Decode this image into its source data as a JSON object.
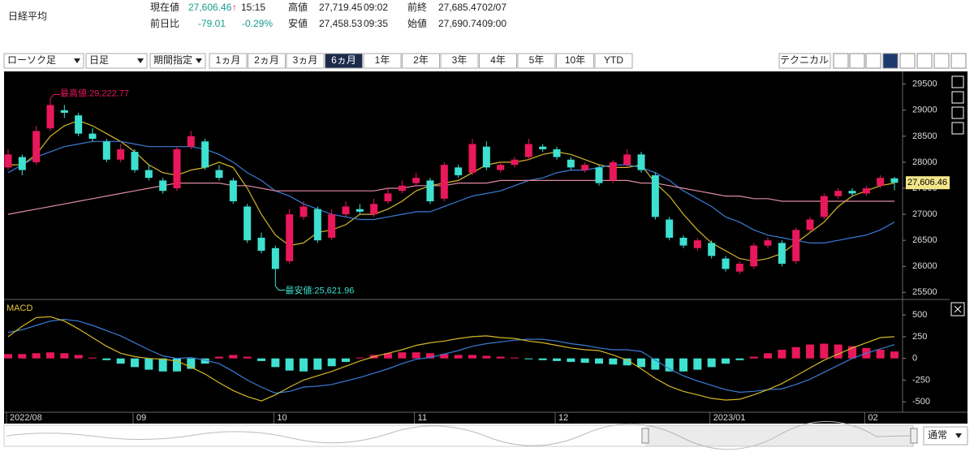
{
  "header": {
    "title": "日経平均",
    "fields": [
      "現在値",
      "27,606.46",
      "↑",
      "15:15",
      "高値",
      "27,719.45",
      "09:02",
      "前終",
      "27,685.47",
      "02/07",
      "前日比",
      "-79.01",
      "-0.29%",
      "安値",
      "27,458.53",
      "09:35",
      "始値",
      "27,690.74",
      "09:00"
    ]
  },
  "toolbar": {
    "dropdowns": [
      "ローソク足",
      "日足",
      "期間指定"
    ],
    "periods": [
      "1ヵ月",
      "2ヵ月",
      "3ヵ月",
      "6ヵ月",
      "1年",
      "2年",
      "3年",
      "4年",
      "5年",
      "10年",
      "YTD"
    ],
    "selected_period": 3,
    "technical": "テクニカル",
    "scale_mode": "通常"
  },
  "chart_data": [
    {
      "type": "candlestick",
      "up_color": "#e8185a",
      "down_color": "#3ee0d0",
      "categories": [
        "2022/08",
        null,
        null,
        null,
        null,
        null,
        null,
        null,
        null,
        "09",
        null,
        null,
        null,
        null,
        null,
        null,
        null,
        null,
        null,
        "10",
        null,
        null,
        null,
        null,
        null,
        null,
        null,
        null,
        null,
        "11",
        null,
        null,
        null,
        null,
        null,
        null,
        null,
        null,
        null,
        "12",
        null,
        null,
        null,
        null,
        null,
        null,
        null,
        null,
        null,
        null,
        "2023/01",
        null,
        null,
        null,
        null,
        null,
        null,
        null,
        null,
        null,
        null,
        "02",
        null,
        null
      ],
      "open": [
        27900,
        28100,
        28000,
        28650,
        29000,
        28900,
        28550,
        28400,
        28050,
        28200,
        27850,
        27650,
        27500,
        28300,
        28400,
        27850,
        27650,
        27150,
        26550,
        26350,
        26100,
        26950,
        27100,
        26550,
        27000,
        27100,
        27000,
        27250,
        27450,
        27600,
        27650,
        27300,
        27900,
        27800,
        28300,
        27850,
        27950,
        28100,
        28300,
        28250,
        28050,
        27850,
        27900,
        27650,
        27950,
        28150,
        27750,
        26900,
        26550,
        26350,
        26450,
        26150,
        25900,
        26000,
        26400,
        26450,
        26100,
        26700,
        26950,
        27350,
        27450,
        27400,
        27550,
        27690.74
      ],
      "high": [
        28250,
        28150,
        28700,
        29222.77,
        29100,
        28950,
        28650,
        28450,
        28350,
        28250,
        27950,
        27700,
        28300,
        28600,
        28450,
        27950,
        27700,
        27200,
        26650,
        26400,
        27100,
        27250,
        27150,
        27100,
        27250,
        27200,
        27300,
        27500,
        27650,
        27800,
        27700,
        28000,
        27950,
        28450,
        28400,
        28000,
        28100,
        28450,
        28350,
        28300,
        28100,
        28000,
        27950,
        28050,
        28250,
        28200,
        27800,
        26950,
        26600,
        26550,
        26500,
        26200,
        26100,
        26450,
        26550,
        26500,
        26750,
        26950,
        27400,
        27500,
        27500,
        27550,
        27750,
        27719.45
      ],
      "low": [
        27850,
        27750,
        27950,
        28600,
        28850,
        28500,
        28400,
        28000,
        28000,
        27800,
        27650,
        27400,
        27450,
        28250,
        27850,
        27650,
        27200,
        26450,
        26250,
        25621.96,
        26050,
        26900,
        26450,
        26500,
        26950,
        27000,
        26950,
        27200,
        27400,
        27550,
        27200,
        27250,
        27700,
        27750,
        27850,
        27800,
        27900,
        28050,
        28200,
        28050,
        27850,
        27800,
        27550,
        27600,
        27900,
        27800,
        26900,
        26500,
        26350,
        26300,
        26150,
        25900,
        25850,
        25950,
        26350,
        26000,
        26050,
        26650,
        26900,
        27300,
        27350,
        27350,
        27500,
        27458.53
      ],
      "close": [
        28150,
        27850,
        28600,
        29100,
        28950,
        28550,
        28450,
        28050,
        28250,
        27850,
        27700,
        27450,
        28250,
        28500,
        27900,
        27700,
        27250,
        26500,
        26300,
        25950,
        27000,
        27150,
        26500,
        27000,
        27150,
        27050,
        27200,
        27400,
        27550,
        27700,
        27250,
        27950,
        27750,
        28350,
        27900,
        27950,
        28050,
        28350,
        28250,
        28100,
        27900,
        27950,
        27600,
        28000,
        28150,
        27850,
        26950,
        26550,
        26400,
        26500,
        26200,
        25950,
        26050,
        26400,
        26500,
        26050,
        26700,
        26900,
        27350,
        27450,
        27400,
        27500,
        27700,
        27606.46
      ],
      "series": [
        {
          "color": "#d4b828",
          "values": [
            27950,
            27950,
            28150,
            28500,
            28700,
            28800,
            28700,
            28550,
            28400,
            28200,
            27950,
            27800,
            27750,
            27850,
            27900,
            28000,
            27900,
            27500,
            27000,
            26600,
            26400,
            26450,
            26650,
            26700,
            26800,
            27000,
            27000,
            27100,
            27250,
            27450,
            27550,
            27600,
            27650,
            27800,
            27950,
            28000,
            28000,
            28050,
            28150,
            28200,
            28150,
            28050,
            27950,
            27900,
            27900,
            27950,
            27600,
            27350,
            27000,
            26700,
            26450,
            26300,
            26150,
            26100,
            26150,
            26250,
            26450,
            26650,
            26850,
            27150,
            27350,
            27450,
            27550,
            27600
          ]
        },
        {
          "color": "#3a7bd5",
          "values": [
            27800,
            27950,
            28100,
            28200,
            28300,
            28350,
            28400,
            28400,
            28400,
            28350,
            28300,
            28300,
            28300,
            28300,
            28250,
            28150,
            28000,
            27800,
            27650,
            27450,
            27350,
            27200,
            27100,
            27000,
            26950,
            26900,
            26900,
            26950,
            27000,
            27050,
            27050,
            27150,
            27250,
            27350,
            27400,
            27450,
            27550,
            27650,
            27700,
            27800,
            27850,
            27850,
            27900,
            27950,
            27950,
            27900,
            27800,
            27650,
            27450,
            27300,
            27150,
            26950,
            26850,
            26700,
            26600,
            26550,
            26500,
            26450,
            26450,
            26500,
            26550,
            26600,
            26700,
            26850
          ]
        },
        {
          "color": "#e08aa0",
          "values": [
            27000,
            27050,
            27100,
            27150,
            27200,
            27250,
            27300,
            27350,
            27400,
            27450,
            27500,
            27550,
            27600,
            27600,
            27600,
            27600,
            27550,
            27550,
            27500,
            27450,
            27450,
            27450,
            27450,
            27450,
            27450,
            27450,
            27450,
            27500,
            27500,
            27550,
            27550,
            27550,
            27600,
            27600,
            27600,
            27650,
            27650,
            27650,
            27650,
            27650,
            27650,
            27650,
            27650,
            27650,
            27650,
            27600,
            27600,
            27550,
            27500,
            27450,
            27400,
            27350,
            27350,
            27300,
            27300,
            27250,
            27250,
            27250,
            27250,
            27250,
            27250,
            27250,
            27250,
            27250
          ]
        }
      ],
      "high_label": "最高値:29,222.77",
      "low_label": "最安値:25,621.96",
      "last_label": "27,606.46",
      "ylim": [
        25380,
        29745
      ],
      "yticks": [
        25500,
        26000,
        26500,
        27000,
        27500,
        28000,
        28500,
        29000,
        29500
      ]
    },
    {
      "type": "macd",
      "title": "MACD",
      "ylim": [
        -620,
        670
      ],
      "yticks": [
        500,
        250,
        0,
        -250,
        -500
      ],
      "up_color": "#e8185a",
      "down_color": "#3ee0d0",
      "histogram": [
        50,
        50,
        60,
        70,
        60,
        40,
        10,
        -20,
        -60,
        -100,
        -130,
        -150,
        -150,
        -120,
        -60,
        20,
        40,
        20,
        -30,
        -100,
        -140,
        -150,
        -130,
        -90,
        -40,
        10,
        40,
        60,
        70,
        70,
        60,
        50,
        40,
        40,
        30,
        20,
        10,
        -10,
        -20,
        -30,
        -40,
        -50,
        -60,
        -70,
        -80,
        -100,
        -130,
        -150,
        -150,
        -130,
        -100,
        -60,
        -20,
        20,
        60,
        100,
        130,
        160,
        170,
        160,
        140,
        120,
        100,
        80
      ],
      "series": [
        {
          "color": "#3a7bd5",
          "values": [
            300,
            330,
            380,
            430,
            450,
            430,
            380,
            320,
            260,
            180,
            100,
            30,
            0,
            10,
            -20,
            -60,
            -150,
            -250,
            -330,
            -400,
            -380,
            -330,
            -320,
            -300,
            -260,
            -220,
            -170,
            -120,
            -60,
            -10,
            10,
            50,
            90,
            140,
            170,
            190,
            210,
            220,
            220,
            200,
            170,
            150,
            120,
            100,
            100,
            80,
            -20,
            -120,
            -200,
            -260,
            -310,
            -360,
            -390,
            -380,
            -360,
            -350,
            -300,
            -240,
            -160,
            -80,
            0,
            60,
            110,
            160
          ]
        },
        {
          "color": "#d4b828",
          "values": [
            250,
            370,
            470,
            480,
            430,
            340,
            240,
            140,
            60,
            20,
            0,
            -10,
            -30,
            -100,
            -180,
            -280,
            -370,
            -440,
            -490,
            -420,
            -330,
            -250,
            -200,
            -150,
            -90,
            -30,
            20,
            60,
            100,
            150,
            180,
            200,
            230,
            250,
            260,
            240,
            230,
            200,
            180,
            150,
            120,
            100,
            90,
            40,
            -20,
            -120,
            -230,
            -320,
            -380,
            -420,
            -460,
            -480,
            -470,
            -420,
            -360,
            -290,
            -200,
            -110,
            -20,
            50,
            120,
            180,
            240,
            250
          ]
        }
      ]
    }
  ]
}
